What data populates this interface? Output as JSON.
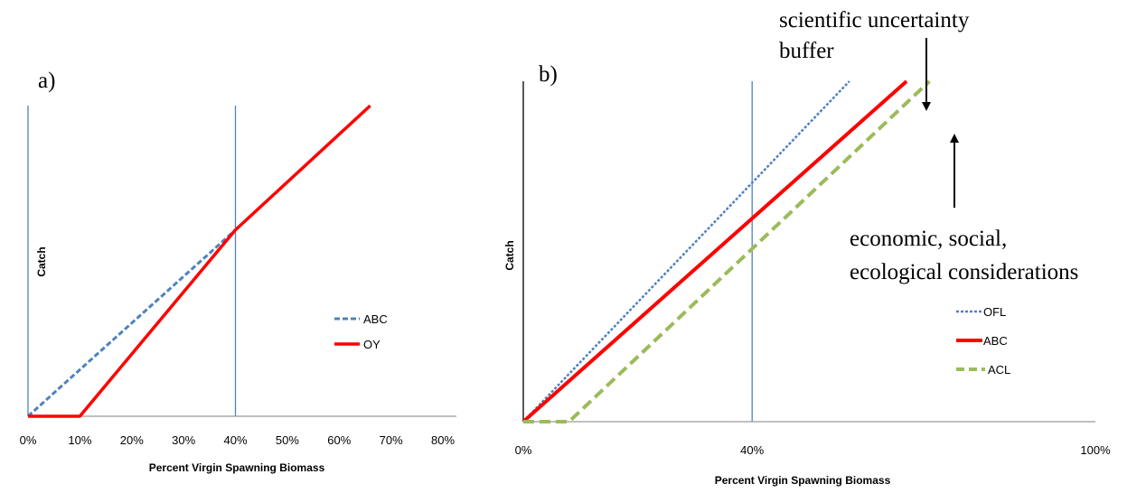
{
  "chart_data": [
    {
      "panel": "a)",
      "type": "line",
      "xlabel": "Percent Virgin Spawning Biomass",
      "ylabel": "Catch",
      "x_ticks": [
        "0%",
        "10%",
        "20%",
        "30%",
        "40%",
        "50%",
        "60%",
        "70%",
        "80%"
      ],
      "xlim": [
        0,
        80
      ],
      "ylim": [
        0,
        100
      ],
      "reference_lines_x": [
        0,
        40
      ],
      "legend_position": "right",
      "series": [
        {
          "name": "ABC",
          "style": "dashed",
          "color": "#4F81BD",
          "x": [
            0,
            40
          ],
          "y": [
            0,
            60
          ]
        },
        {
          "name": "OY",
          "style": "solid",
          "color": "#FF0000",
          "x": [
            0,
            10,
            40,
            66
          ],
          "y": [
            0,
            0,
            60,
            100
          ]
        }
      ]
    },
    {
      "panel": "b)",
      "type": "line",
      "xlabel": "Percent Virgin Spawning Biomass",
      "ylabel": "Catch",
      "x_ticks": [
        "0%",
        "40%",
        "100%"
      ],
      "xlim": [
        0,
        100
      ],
      "ylim": [
        0,
        100
      ],
      "reference_lines_x": [
        0,
        40
      ],
      "legend_position": "right",
      "series": [
        {
          "name": "OFL",
          "style": "dotted",
          "color": "#4F81BD",
          "x": [
            0,
            57
          ],
          "y": [
            0,
            100
          ]
        },
        {
          "name": "ABC",
          "style": "solid",
          "color": "#FF0000",
          "x": [
            0,
            67
          ],
          "y": [
            0,
            100
          ]
        },
        {
          "name": "ACL",
          "style": "dashed",
          "color": "#9BBB59",
          "x": [
            0,
            8,
            71
          ],
          "y": [
            0,
            0,
            100
          ]
        }
      ],
      "annotations": [
        {
          "text": [
            "scientific uncertainty",
            "buffer"
          ]
        },
        {
          "text": [
            "economic, social,",
            "ecological considerations"
          ]
        }
      ]
    }
  ]
}
